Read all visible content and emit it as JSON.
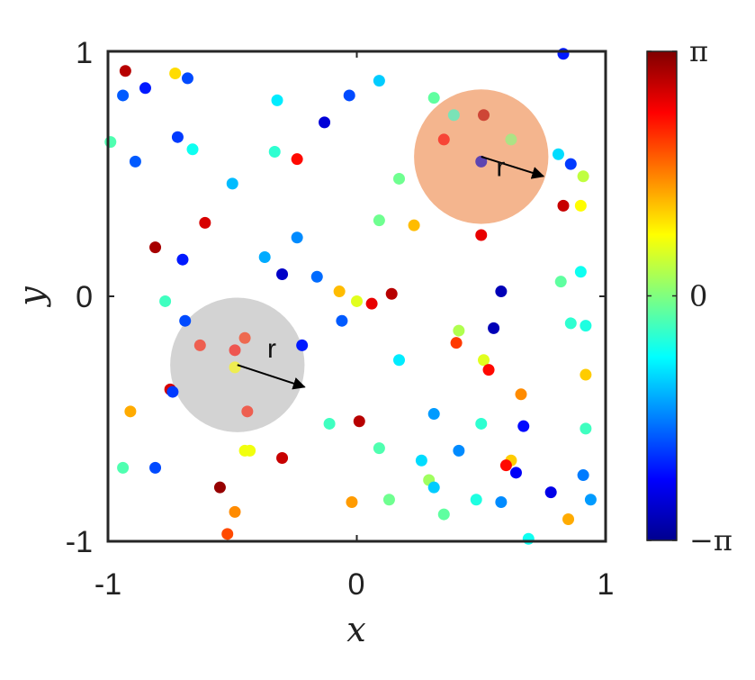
{
  "chart_data": {
    "type": "scatter",
    "title": "",
    "xlabel": "x",
    "ylabel": "y",
    "xlim": [
      -1,
      1
    ],
    "ylim": [
      -1,
      1
    ],
    "x_ticks": [
      "-1",
      "0",
      "1"
    ],
    "y_ticks": [
      "-1",
      "0",
      "1"
    ],
    "grid": false,
    "colorbar": {
      "colormap": "jet",
      "range": [
        -3.14159,
        3.14159
      ],
      "ticks": [
        {
          "value": 3.14159,
          "label": "π"
        },
        {
          "value": 0,
          "label": "0"
        },
        {
          "value": -3.14159,
          "label": "−π"
        }
      ]
    },
    "circles": [
      {
        "cx": 0.5,
        "cy": 0.57,
        "radius": 0.27,
        "color": "#f4b58e",
        "label": "r"
      },
      {
        "cx": -0.48,
        "cy": -0.28,
        "radius": 0.27,
        "color": "#d3d3d3",
        "label": "r"
      }
    ],
    "points": [
      {
        "x": 0.83,
        "y": 0.99,
        "phase": -2.2
      },
      {
        "x": -0.93,
        "y": 0.92,
        "phase": 2.8
      },
      {
        "x": -0.73,
        "y": 0.91,
        "phase": 1.0
      },
      {
        "x": -0.68,
        "y": 0.89,
        "phase": -1.9
      },
      {
        "x": 0.09,
        "y": 0.88,
        "phase": -1.1
      },
      {
        "x": -0.85,
        "y": 0.85,
        "phase": -2.2
      },
      {
        "x": -0.94,
        "y": 0.82,
        "phase": -1.8
      },
      {
        "x": -0.03,
        "y": 0.82,
        "phase": -1.9
      },
      {
        "x": 0.31,
        "y": 0.81,
        "phase": -0.2
      },
      {
        "x": -0.32,
        "y": 0.8,
        "phase": -0.9
      },
      {
        "x": 0.39,
        "y": 0.74,
        "phase": -0.5
      },
      {
        "x": 0.51,
        "y": 0.74,
        "phase": 2.8
      },
      {
        "x": -0.13,
        "y": 0.71,
        "phase": -2.6
      },
      {
        "x": -0.72,
        "y": 0.65,
        "phase": -2.0
      },
      {
        "x": 0.35,
        "y": 0.64,
        "phase": 2.4
      },
      {
        "x": 0.62,
        "y": 0.64,
        "phase": 0.0
      },
      {
        "x": -0.99,
        "y": 0.63,
        "phase": -0.3
      },
      {
        "x": -0.66,
        "y": 0.6,
        "phase": -0.7
      },
      {
        "x": -0.33,
        "y": 0.59,
        "phase": -0.5
      },
      {
        "x": 0.81,
        "y": 0.58,
        "phase": -1.0
      },
      {
        "x": -0.24,
        "y": 0.56,
        "phase": 2.3
      },
      {
        "x": -0.89,
        "y": 0.55,
        "phase": -1.8
      },
      {
        "x": 0.86,
        "y": 0.54,
        "phase": -2.0
      },
      {
        "x": 0.5,
        "y": 0.55,
        "phase": -2.7
      },
      {
        "x": 0.91,
        "y": 0.49,
        "phase": 0.4
      },
      {
        "x": 0.17,
        "y": 0.48,
        "phase": -0.1
      },
      {
        "x": -0.5,
        "y": 0.46,
        "phase": -1.2
      },
      {
        "x": 0.83,
        "y": 0.37,
        "phase": 2.7
      },
      {
        "x": 0.9,
        "y": 0.37,
        "phase": 0.8
      },
      {
        "x": 0.09,
        "y": 0.31,
        "phase": -0.1
      },
      {
        "x": 0.23,
        "y": 0.29,
        "phase": 1.2
      },
      {
        "x": -0.61,
        "y": 0.3,
        "phase": 2.6
      },
      {
        "x": 0.5,
        "y": 0.25,
        "phase": 2.5
      },
      {
        "x": -0.24,
        "y": 0.24,
        "phase": -1.5
      },
      {
        "x": -0.81,
        "y": 0.2,
        "phase": 2.9
      },
      {
        "x": -0.37,
        "y": 0.16,
        "phase": -1.3
      },
      {
        "x": -0.7,
        "y": 0.15,
        "phase": -2.2
      },
      {
        "x": -0.3,
        "y": 0.09,
        "phase": -2.7
      },
      {
        "x": -0.16,
        "y": 0.08,
        "phase": -1.7
      },
      {
        "x": 0.9,
        "y": 0.1,
        "phase": -0.7
      },
      {
        "x": 0.82,
        "y": 0.06,
        "phase": -0.2
      },
      {
        "x": 0.58,
        "y": 0.02,
        "phase": -2.8
      },
      {
        "x": -0.07,
        "y": 0.02,
        "phase": 1.2
      },
      {
        "x": 0.14,
        "y": 0.01,
        "phase": 2.8
      },
      {
        "x": -0.77,
        "y": -0.02,
        "phase": -0.4
      },
      {
        "x": 0.0,
        "y": -0.02,
        "phase": 0.6
      },
      {
        "x": 0.06,
        "y": -0.03,
        "phase": 2.5
      },
      {
        "x": -0.69,
        "y": -0.1,
        "phase": -1.9
      },
      {
        "x": -0.06,
        "y": -0.1,
        "phase": -1.8
      },
      {
        "x": 0.86,
        "y": -0.11,
        "phase": -0.5
      },
      {
        "x": 0.92,
        "y": -0.12,
        "phase": -0.6
      },
      {
        "x": 0.55,
        "y": -0.13,
        "phase": -2.8
      },
      {
        "x": 0.41,
        "y": -0.14,
        "phase": 0.3
      },
      {
        "x": -0.45,
        "y": -0.17,
        "phase": 2.1
      },
      {
        "x": 0.4,
        "y": -0.19,
        "phase": 2.0
      },
      {
        "x": -0.63,
        "y": -0.2,
        "phase": 2.2
      },
      {
        "x": -0.22,
        "y": -0.2,
        "phase": -2.2
      },
      {
        "x": -0.49,
        "y": -0.22,
        "phase": 2.3
      },
      {
        "x": 0.17,
        "y": -0.26,
        "phase": -0.9
      },
      {
        "x": 0.51,
        "y": -0.26,
        "phase": 0.6
      },
      {
        "x": 0.53,
        "y": -0.3,
        "phase": 2.3
      },
      {
        "x": -0.49,
        "y": -0.29,
        "phase": 0.8
      },
      {
        "x": 0.92,
        "y": -0.32,
        "phase": 1.1
      },
      {
        "x": -0.75,
        "y": -0.38,
        "phase": 2.6
      },
      {
        "x": -0.74,
        "y": -0.39,
        "phase": -2.0
      },
      {
        "x": 0.66,
        "y": -0.4,
        "phase": 1.5
      },
      {
        "x": -0.91,
        "y": -0.47,
        "phase": 1.3
      },
      {
        "x": -0.44,
        "y": -0.47,
        "phase": 2.2
      },
      {
        "x": 0.31,
        "y": -0.48,
        "phase": -1.4
      },
      {
        "x": 0.01,
        "y": -0.51,
        "phase": 2.8
      },
      {
        "x": -0.11,
        "y": -0.52,
        "phase": -0.4
      },
      {
        "x": 0.5,
        "y": -0.52,
        "phase": -0.5
      },
      {
        "x": 0.67,
        "y": -0.53,
        "phase": -2.3
      },
      {
        "x": 0.92,
        "y": -0.54,
        "phase": -0.4
      },
      {
        "x": -0.45,
        "y": -0.63,
        "phase": 0.7
      },
      {
        "x": -0.43,
        "y": -0.63,
        "phase": 0.7
      },
      {
        "x": 0.09,
        "y": -0.62,
        "phase": -0.3
      },
      {
        "x": 0.41,
        "y": -0.63,
        "phase": -1.5
      },
      {
        "x": -0.3,
        "y": -0.66,
        "phase": 2.7
      },
      {
        "x": 0.26,
        "y": -0.67,
        "phase": -1.0
      },
      {
        "x": 0.62,
        "y": -0.67,
        "phase": 1.1
      },
      {
        "x": 0.6,
        "y": -0.69,
        "phase": 2.3
      },
      {
        "x": -0.94,
        "y": -0.7,
        "phase": -0.3
      },
      {
        "x": -0.81,
        "y": -0.7,
        "phase": -1.9
      },
      {
        "x": 0.64,
        "y": -0.72,
        "phase": -2.4
      },
      {
        "x": 0.91,
        "y": -0.73,
        "phase": -1.6
      },
      {
        "x": 0.29,
        "y": -0.75,
        "phase": 0.2
      },
      {
        "x": 0.31,
        "y": -0.78,
        "phase": -1.1
      },
      {
        "x": -0.55,
        "y": -0.78,
        "phase": 3.0
      },
      {
        "x": 0.78,
        "y": -0.8,
        "phase": -2.5
      },
      {
        "x": 0.48,
        "y": -0.83,
        "phase": -0.6
      },
      {
        "x": 0.58,
        "y": -0.84,
        "phase": -1.5
      },
      {
        "x": 0.94,
        "y": -0.83,
        "phase": -1.4
      },
      {
        "x": 0.13,
        "y": -0.83,
        "phase": -0.1
      },
      {
        "x": -0.02,
        "y": -0.84,
        "phase": 1.4
      },
      {
        "x": -0.49,
        "y": -0.88,
        "phase": 1.5
      },
      {
        "x": 0.35,
        "y": -0.89,
        "phase": -0.2
      },
      {
        "x": 0.85,
        "y": -0.91,
        "phase": 1.3
      },
      {
        "x": -0.52,
        "y": -0.97,
        "phase": 1.9
      },
      {
        "x": 0.69,
        "y": -0.99,
        "phase": -0.7
      }
    ]
  }
}
